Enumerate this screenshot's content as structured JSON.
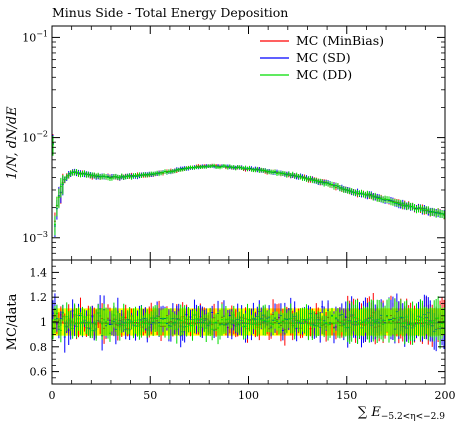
{
  "chart_data": {
    "type": "line",
    "title": "Minus Side - Total Energy Deposition",
    "ylabel": "1/N, dN/dE",
    "xlabel": "∑ E−5.2<η<−2.9",
    "xlabel_parts": {
      "main": "∑ E",
      "sub": "−5.2<η<−2.9"
    },
    "ratio_ylabel": "MC/data",
    "xlim": [
      0,
      200
    ],
    "ylim": [
      0.0006,
      0.13
    ],
    "yscale": "log",
    "ratio_ylim": [
      0.5,
      1.5
    ],
    "x_ticks": [
      0,
      50,
      100,
      150,
      200
    ],
    "x_tick_labels": [
      "0",
      "50",
      "100",
      "150",
      "200"
    ],
    "y_ticks": [
      {
        "value": 0.1,
        "base": "10",
        "exp": "−1"
      },
      {
        "value": 0.01,
        "base": "10",
        "exp": "−2"
      },
      {
        "value": 0.001,
        "base": "10",
        "exp": "−3"
      }
    ],
    "ratio_ticks": [
      0.6,
      0.8,
      1,
      1.2,
      1.4
    ],
    "ratio_tick_labels": [
      "0.6",
      "0.8",
      "1",
      "1.2",
      "1.4"
    ],
    "legend_position": "top-right",
    "bin_width": 1,
    "band": {
      "color": "#ffff00",
      "ratio_lower": 0.89,
      "ratio_upper": 1.11
    },
    "series": [
      {
        "name": "MC (MinBias)",
        "color": "#ff0000"
      },
      {
        "name": "MC (SD)",
        "color": "#0000ff"
      },
      {
        "name": "MC (DD)",
        "color": "#00dd00"
      }
    ],
    "shape_knots": {
      "x": [
        0,
        1,
        2,
        3,
        5,
        7,
        10,
        15,
        20,
        30,
        40,
        50,
        60,
        70,
        80,
        90,
        100,
        110,
        120,
        130,
        140,
        150,
        160,
        170,
        180,
        190,
        200
      ],
      "y": [
        0.07,
        0.0011,
        0.0017,
        0.0024,
        0.0032,
        0.004,
        0.0045,
        0.0044,
        0.0042,
        0.004,
        0.0041,
        0.0043,
        0.0046,
        0.005,
        0.0052,
        0.0051,
        0.0049,
        0.0046,
        0.0043,
        0.0039,
        0.0035,
        0.003,
        0.0027,
        0.0024,
        0.0021,
        0.0019,
        0.0017
      ]
    }
  }
}
